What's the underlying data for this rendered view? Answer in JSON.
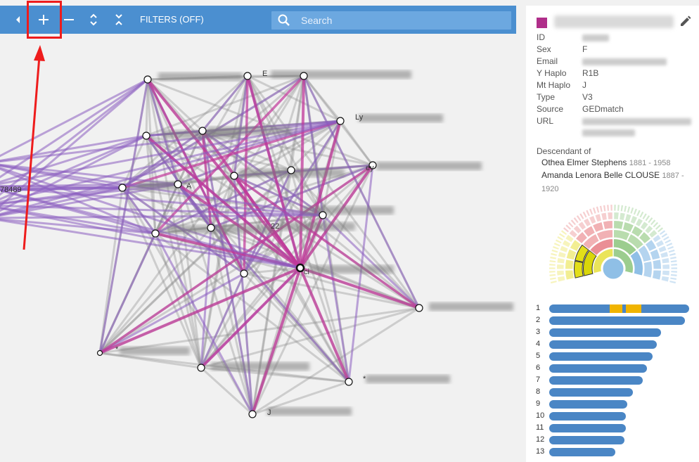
{
  "toolbar": {
    "collapse_icon": "chevron-left-icon",
    "zoom_in_icon": "plus-icon",
    "zoom_out_icon": "minus-icon",
    "expand_icon": "unfold-more-icon",
    "collapse_all_icon": "unfold-less-icon",
    "filters_label": "FILTERS (OFF)",
    "search_placeholder": "Search",
    "color": "#4b8fd0"
  },
  "annotation": {
    "color": "#ee1c1c"
  },
  "graph": {
    "node_labels": [
      "78489",
      "E",
      "Ly",
      "ey",
      "22",
      "A",
      "ci",
      "J",
      "*",
      "*"
    ],
    "edge_colors": {
      "pink": "#c0389a",
      "purple": "#8a5cc0",
      "gray": "#8a8a8a"
    }
  },
  "profile": {
    "swatch_color": "#b02e8a",
    "edit_icon": "pencil-icon",
    "fields": [
      {
        "key": "ID",
        "value": ""
      },
      {
        "key": "Sex",
        "value": "F"
      },
      {
        "key": "Email",
        "value": ""
      },
      {
        "key": "Y Haplo",
        "value": "R1B"
      },
      {
        "key": "Mt Haplo",
        "value": "J"
      },
      {
        "key": "Type",
        "value": "V3"
      },
      {
        "key": "Source",
        "value": "GEDmatch"
      },
      {
        "key": "URL",
        "value": ""
      }
    ],
    "descendant_title": "Descendant of",
    "ancestors": [
      {
        "name": "Othea Elmer Stephens",
        "years": "1881 - 1958"
      },
      {
        "name": "Amanda Lenora Belle CLOUSE",
        "years": "1887 -"
      },
      {
        "name": "",
        "years": "1920"
      }
    ]
  },
  "chromosomes": [
    {
      "n": "1",
      "len": 1.0,
      "seg": [
        [
          0.43,
          0.52
        ],
        [
          0.55,
          0.66
        ]
      ]
    },
    {
      "n": "2",
      "len": 0.97,
      "seg": []
    },
    {
      "n": "3",
      "len": 0.8,
      "seg": []
    },
    {
      "n": "4",
      "len": 0.77,
      "seg": []
    },
    {
      "n": "5",
      "len": 0.74,
      "seg": []
    },
    {
      "n": "6",
      "len": 0.7,
      "seg": []
    },
    {
      "n": "7",
      "len": 0.67,
      "seg": []
    },
    {
      "n": "8",
      "len": 0.6,
      "seg": []
    },
    {
      "n": "9",
      "len": 0.56,
      "seg": []
    },
    {
      "n": "10",
      "len": 0.55,
      "seg": []
    },
    {
      "n": "11",
      "len": 0.55,
      "seg": []
    },
    {
      "n": "12",
      "len": 0.54,
      "seg": []
    },
    {
      "n": "13",
      "len": 0.47,
      "seg": []
    }
  ]
}
